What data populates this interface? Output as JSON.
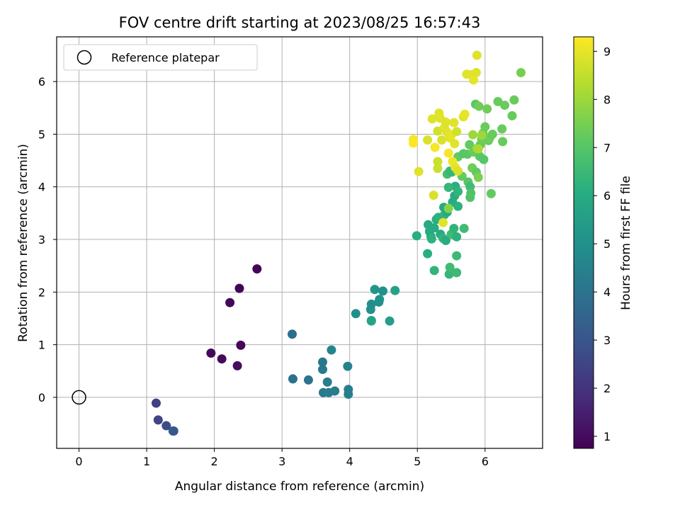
{
  "chart_data": {
    "type": "scatter",
    "title": "FOV centre drift starting at 2023/08/25 16:57:43",
    "xlabel": "Angular distance from reference (arcmin)",
    "ylabel": "Rotation from reference (arcmin)",
    "xlim": [
      -0.33,
      6.85
    ],
    "ylim": [
      -0.97,
      6.85
    ],
    "xticks": [
      0,
      1,
      2,
      3,
      4,
      5,
      6
    ],
    "yticks": [
      0,
      1,
      2,
      3,
      4,
      5,
      6
    ],
    "grid": true,
    "legend": {
      "placement": "top-left",
      "entries": [
        "Reference platepar"
      ]
    },
    "reference_point": {
      "name": "Reference platepar",
      "x": 0,
      "y": 0,
      "marker": "open-circle"
    },
    "colorbar": {
      "label": "Hours from first FF file",
      "colormap": "viridis",
      "range": [
        0.75,
        9.3
      ],
      "ticks": [
        1,
        2,
        3,
        4,
        5,
        6,
        7,
        8,
        9
      ]
    },
    "series": [
      {
        "marker": "filled-circle",
        "points": [
          [
            2.63,
            2.44,
            0.8
          ],
          [
            2.37,
            2.07,
            0.85
          ],
          [
            2.23,
            1.8,
            0.9
          ],
          [
            2.39,
            0.99,
            0.9
          ],
          [
            1.95,
            0.84,
            0.95
          ],
          [
            2.11,
            0.73,
            1.0
          ],
          [
            2.34,
            0.6,
            1.05
          ],
          [
            1.14,
            -0.11,
            2.3
          ],
          [
            1.17,
            -0.43,
            2.5
          ],
          [
            1.29,
            -0.54,
            2.7
          ],
          [
            1.39,
            -0.64,
            3.0
          ],
          [
            1.4,
            -0.64,
            3.1
          ],
          [
            3.15,
            1.2,
            3.9
          ],
          [
            3.16,
            0.35,
            3.9
          ],
          [
            3.39,
            0.33,
            4.0
          ],
          [
            3.6,
            0.67,
            4.2
          ],
          [
            3.6,
            0.53,
            4.2
          ],
          [
            3.67,
            0.29,
            4.3
          ],
          [
            3.61,
            0.09,
            4.2
          ],
          [
            3.69,
            0.09,
            4.3
          ],
          [
            3.78,
            0.12,
            4.3
          ],
          [
            3.73,
            0.9,
            4.6
          ],
          [
            3.97,
            0.59,
            4.5
          ],
          [
            3.98,
            0.15,
            4.4
          ],
          [
            3.98,
            0.06,
            4.4
          ],
          [
            4.09,
            1.59,
            5.0
          ],
          [
            4.32,
            1.46,
            5.7
          ],
          [
            4.32,
            1.45,
            5.7
          ],
          [
            4.31,
            1.67,
            5.1
          ],
          [
            4.32,
            1.77,
            5.0
          ],
          [
            4.37,
            2.05,
            5.2
          ],
          [
            4.43,
            1.81,
            5.0
          ],
          [
            4.44,
            1.86,
            5.1
          ],
          [
            4.49,
            2.02,
            5.1
          ],
          [
            4.59,
            1.45,
            5.5
          ],
          [
            4.67,
            2.03,
            5.6
          ],
          [
            4.99,
            3.07,
            6.1
          ],
          [
            5.15,
            2.73,
            6.1
          ],
          [
            5.25,
            2.41,
            6.3
          ],
          [
            5.16,
            3.28,
            5.9
          ],
          [
            5.18,
            3.15,
            6.0
          ],
          [
            5.2,
            3.06,
            6.0
          ],
          [
            5.21,
            3.01,
            6.2
          ],
          [
            5.25,
            3.22,
            6.0
          ],
          [
            5.28,
            3.38,
            6.1
          ],
          [
            5.31,
            3.42,
            6.2
          ],
          [
            5.34,
            3.1,
            6.0
          ],
          [
            5.38,
            3.02,
            6.3
          ],
          [
            5.39,
            3.61,
            5.9
          ],
          [
            5.4,
            3.47,
            6.3
          ],
          [
            5.42,
            2.98,
            6.0
          ],
          [
            5.44,
            3.52,
            6.0
          ],
          [
            5.47,
            2.34,
            6.4
          ],
          [
            5.48,
            2.47,
            6.6
          ],
          [
            5.5,
            3.1,
            6.6
          ],
          [
            5.52,
            3.71,
            6.0
          ],
          [
            5.54,
            3.21,
            6.3
          ],
          [
            5.55,
            3.83,
            6.0
          ],
          [
            5.56,
            4.01,
            6.1
          ],
          [
            5.58,
            2.69,
            6.5
          ],
          [
            5.58,
            2.37,
            6.5
          ],
          [
            5.58,
            3.05,
            6.2
          ],
          [
            5.6,
            3.91,
            6.3
          ],
          [
            5.6,
            3.63,
            6.2
          ],
          [
            5.69,
            3.21,
            6.6
          ],
          [
            5.46,
            3.59,
            7.7
          ],
          [
            5.46,
            3.99,
            6.4
          ],
          [
            5.44,
            4.24,
            6.7
          ],
          [
            5.48,
            4.3,
            6.5
          ],
          [
            5.51,
            4.28,
            6.4
          ],
          [
            5.6,
            4.57,
            7.2
          ],
          [
            5.66,
            4.2,
            7.2
          ],
          [
            5.68,
            4.63,
            7.0
          ],
          [
            5.74,
            4.62,
            7.1
          ],
          [
            5.75,
            4.09,
            7.0
          ],
          [
            5.77,
            4.8,
            7.2
          ],
          [
            5.78,
            4.0,
            6.6
          ],
          [
            5.78,
            3.8,
            6.9
          ],
          [
            5.79,
            3.88,
            6.9
          ],
          [
            5.81,
            4.36,
            7.4
          ],
          [
            5.83,
            4.66,
            7.3
          ],
          [
            5.86,
            5.57,
            7.1
          ],
          [
            5.87,
            4.28,
            7.2
          ],
          [
            5.88,
            4.73,
            8.0
          ],
          [
            5.9,
            4.18,
            7.6
          ],
          [
            5.91,
            5.53,
            7.4
          ],
          [
            5.92,
            4.58,
            7.1
          ],
          [
            5.93,
            4.8,
            7.3
          ],
          [
            5.95,
            4.91,
            7.4
          ],
          [
            5.97,
            5.02,
            7.3
          ],
          [
            5.98,
            4.52,
            7.0
          ],
          [
            6.0,
            5.14,
            7.3
          ],
          [
            6.03,
            5.48,
            7.4
          ],
          [
            6.05,
            4.88,
            7.3
          ],
          [
            6.07,
            4.93,
            7.4
          ],
          [
            6.09,
            3.87,
            7.2
          ],
          [
            6.11,
            5.0,
            7.3
          ],
          [
            6.19,
            5.62,
            7.3
          ],
          [
            6.25,
            5.1,
            7.3
          ],
          [
            6.26,
            4.86,
            7.3
          ],
          [
            6.29,
            5.55,
            7.3
          ],
          [
            6.4,
            5.35,
            7.3
          ],
          [
            6.43,
            5.65,
            7.3
          ],
          [
            6.53,
            6.17,
            7.5
          ],
          [
            4.94,
            4.9,
            9.2
          ],
          [
            4.94,
            4.83,
            9.3
          ],
          [
            5.02,
            4.29,
            8.9
          ],
          [
            5.15,
            4.89,
            8.8
          ],
          [
            5.22,
            5.29,
            8.9
          ],
          [
            5.24,
            3.84,
            8.8
          ],
          [
            5.26,
            4.75,
            9.2
          ],
          [
            5.3,
            4.48,
            8.6
          ],
          [
            5.3,
            4.35,
            8.6
          ],
          [
            5.3,
            5.06,
            8.7
          ],
          [
            5.32,
            5.4,
            8.9
          ],
          [
            5.34,
            5.3,
            8.9
          ],
          [
            5.36,
            4.89,
            8.8
          ],
          [
            5.38,
            3.32,
            8.9
          ],
          [
            5.4,
            5.12,
            8.9
          ],
          [
            5.42,
            5.23,
            8.9
          ],
          [
            5.44,
            5.04,
            8.9
          ],
          [
            5.46,
            4.64,
            9.2
          ],
          [
            5.48,
            4.93,
            8.9
          ],
          [
            5.5,
            4.98,
            9.0
          ],
          [
            5.52,
            4.48,
            9.1
          ],
          [
            5.54,
            5.22,
            8.9
          ],
          [
            5.55,
            4.82,
            8.9
          ],
          [
            5.56,
            4.37,
            9.0
          ],
          [
            5.58,
            5.05,
            8.7
          ],
          [
            5.6,
            4.3,
            8.8
          ],
          [
            5.68,
            5.33,
            8.9
          ],
          [
            5.7,
            5.38,
            9.0
          ],
          [
            5.73,
            6.14,
            8.9
          ],
          [
            5.8,
            6.13,
            8.9
          ],
          [
            5.83,
            6.03,
            9.0
          ],
          [
            5.87,
            6.17,
            8.9
          ],
          [
            5.88,
            6.5,
            8.9
          ],
          [
            5.82,
            4.99,
            8.0
          ],
          [
            5.9,
            4.72,
            8.2
          ],
          [
            5.95,
            4.98,
            8.0
          ]
        ]
      }
    ]
  }
}
